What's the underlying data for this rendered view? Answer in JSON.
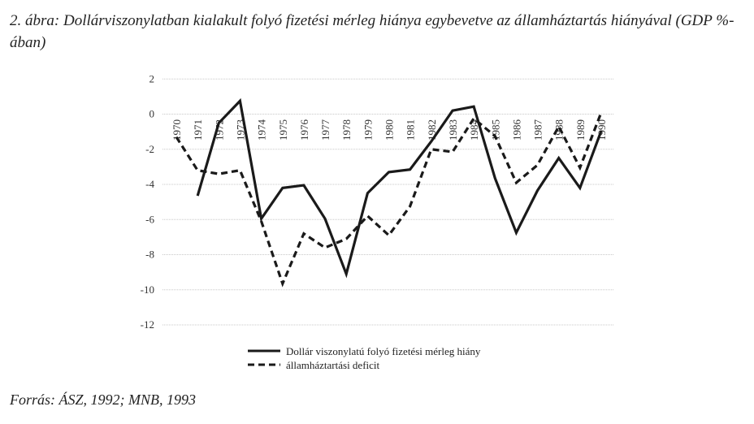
{
  "chart_data": {
    "type": "line",
    "title": "2. ábra: Dollárviszonylatban kialakult folyó fizetési mérleg hiánya egybevetve az államháztartás hiányával (GDP %-ában)",
    "source": "Forrás: ÁSZ, 1992; MNB, 1993",
    "xlabel": "",
    "ylabel": "",
    "ylim": [
      -12,
      2
    ],
    "yticks": [
      "2",
      "0",
      "-2",
      "-4",
      "-6",
      "-8",
      "-10",
      "-12"
    ],
    "grid": true,
    "legend_position": "bottom",
    "categories": [
      "1970",
      "1971",
      "1972",
      "1973",
      "1974",
      "1975",
      "1976",
      "1977",
      "1978",
      "1979",
      "1980",
      "1981",
      "1982",
      "1983",
      "1984",
      "1985",
      "1986",
      "1987",
      "1988",
      "1989",
      "1990"
    ],
    "series": [
      {
        "name": "Dollár viszonylatú folyó fizetési mérleg hiány",
        "style": "solid",
        "values": [
          null,
          -4.65,
          -0.5,
          0.75,
          -5.95,
          -4.2,
          -4.05,
          -5.95,
          -9.1,
          -4.5,
          -3.3,
          -3.15,
          -1.55,
          0.2,
          0.43,
          -3.65,
          -6.75,
          -4.35,
          -2.5,
          -4.2,
          -0.95
        ]
      },
      {
        "name": "államháztartási deficit",
        "style": "dashed",
        "values": [
          -1.3,
          -3.2,
          -3.4,
          -3.2,
          -6.1,
          -9.65,
          -6.8,
          -7.6,
          -7.1,
          -5.8,
          -6.9,
          -5.25,
          -2.0,
          -2.15,
          -0.25,
          -1.25,
          -3.9,
          -2.9,
          -0.7,
          -3.05,
          0.1
        ]
      }
    ],
    "colors": {
      "line": "#1a1a1a",
      "grid": "#c8c8c8"
    }
  }
}
